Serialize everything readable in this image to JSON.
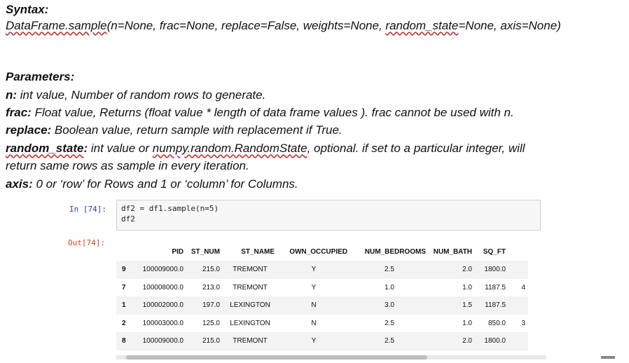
{
  "syntax": {
    "heading": "Syntax:",
    "prefix": "DataFrame.sample",
    "middle": "(n=None, frac=None, replace=False, weights=None, ",
    "random_state": "random_state",
    "suffix": "=None, axis=None)"
  },
  "parameters": {
    "heading": "Parameters:",
    "n": {
      "term": "n:",
      "desc": " int value, Number of random rows to generate."
    },
    "frac": {
      "term": "frac:",
      "desc": " Float value, Returns (float value * length of data frame values ). frac cannot be used with n."
    },
    "replace": {
      "term": "replace:",
      "desc": " Boolean value, return sample with replacement if True."
    },
    "random_state": {
      "term": "random_state",
      "colon": ":",
      "desc_before": " int value or ",
      "link": "numpy.random.RandomState",
      "desc_after": ", optional. if set to a particular integer, will",
      "line2": "return same rows as sample in every iteration."
    },
    "axis": {
      "term": "axis:",
      "desc": " 0 or ‘row’ for Rows and 1 or ‘column’ for Columns."
    }
  },
  "notebook": {
    "in_prompt": "In [74]:",
    "code_line1": "df2 = df1.sample(n=5)",
    "code_line2": "df2",
    "out_prompt": "Out[74]:"
  },
  "table": {
    "columns": [
      "",
      "PID",
      "ST_NUM",
      "ST_NAME",
      "OWN_OCCUPIED",
      "NUM_BEDROOMS",
      "NUM_BATH",
      "SQ_FT",
      ""
    ],
    "rows": [
      [
        "9",
        "100009000.0",
        "215.0",
        "TREMONT",
        "Y",
        "2.5",
        "2.0",
        "1800.0",
        ""
      ],
      [
        "7",
        "100008000.0",
        "213.0",
        "TREMONT",
        "Y",
        "1.0",
        "1.0",
        "1187.5",
        "4"
      ],
      [
        "1",
        "100002000.0",
        "197.0",
        "LEXINGTON",
        "N",
        "3.0",
        "1.5",
        "1187.5",
        ""
      ],
      [
        "2",
        "100003000.0",
        "125.0",
        "LEXINGTON",
        "N",
        "2.5",
        "1.0",
        "850.0",
        "3"
      ],
      [
        "8",
        "100009000.0",
        "215.0",
        "TREMONT",
        "Y",
        "2.5",
        "2.0",
        "1800.0",
        ""
      ]
    ]
  }
}
